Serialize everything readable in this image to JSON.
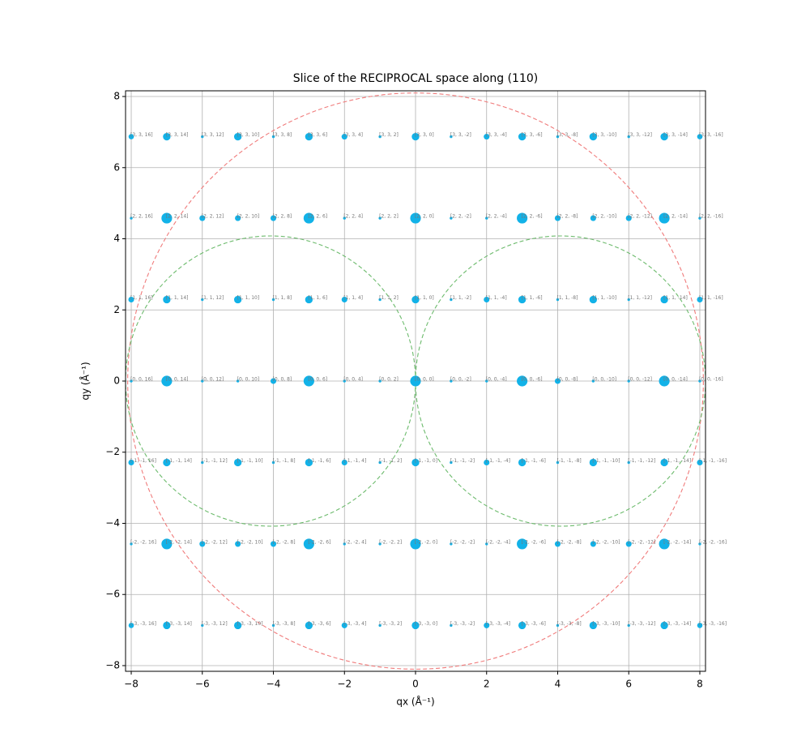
{
  "chart_data": {
    "type": "scatter",
    "title": "Slice of the RECIPROCAL space along (110)",
    "x_label": "qx (Å⁻¹)",
    "y_label": "qy (Å⁻¹)",
    "xlim": [
      -8.16,
      8.16
    ],
    "ylim": [
      -8.16,
      8.16
    ],
    "xticks": [
      {
        "value": -8,
        "label": "−8"
      },
      {
        "value": -6,
        "label": "−6"
      },
      {
        "value": -4,
        "label": "−4"
      },
      {
        "value": -2,
        "label": "−2"
      },
      0,
      2,
      4,
      6,
      8
    ],
    "yticks": [
      {
        "value": -8,
        "label": "−8"
      },
      {
        "value": -6,
        "label": "−6"
      },
      {
        "value": -4,
        "label": "−4"
      },
      {
        "value": -2,
        "label": "−2"
      },
      0,
      2,
      4,
      6,
      8
    ],
    "grid": true,
    "color": "#12b2e8",
    "x": [
      -8,
      -7,
      -6,
      -5,
      -4,
      -3,
      -2,
      -1,
      0,
      1,
      2,
      3,
      4,
      5,
      6,
      7,
      8
    ],
    "rows": [
      {
        "y": 6.87,
        "sizes": [
          30,
          60,
          8,
          60,
          8,
          60,
          35,
          8,
          60,
          8,
          35,
          60,
          8,
          60,
          8,
          60,
          30
        ],
        "labels": [
          "[3, 3, 16]",
          "[3, 3, 14]",
          "[3, 3, 12]",
          "[3, 3, 10]",
          "[3, 3, 8]",
          "[3, 3, 6]",
          "[3, 3, 4]",
          "[3, 3, 2]",
          "[3, 3, 0]",
          "[3, 3, -2]",
          "[3, 3, -4]",
          "[3, 3, -6]",
          "[3, 3, -8]",
          "[3, 3, -10]",
          "[3, 3, -12]",
          "[3, 3, -14]",
          "[3, 3, -16]"
        ]
      },
      {
        "y": 4.58,
        "sizes": [
          8,
          120,
          35,
          35,
          35,
          120,
          8,
          8,
          120,
          8,
          8,
          120,
          35,
          35,
          35,
          120,
          8
        ],
        "labels": [
          "[2, 2, 16]",
          "[2, 2, 14]",
          "[2, 2, 12]",
          "[2, 2, 10]",
          "[2, 2, 8]",
          "[2, 2, 6]",
          "[2, 2, 4]",
          "[2, 2, 2]",
          "[2, 2, 0]",
          "[2, 2, -2]",
          "[2, 2, -4]",
          "[2, 2, -6]",
          "[2, 2, -8]",
          "[2, 2, -10]",
          "[2, 2, -12]",
          "[2, 2, -14]",
          "[2, 2, -16]"
        ]
      },
      {
        "y": 2.29,
        "sizes": [
          35,
          60,
          8,
          60,
          8,
          60,
          35,
          8,
          60,
          8,
          35,
          60,
          8,
          60,
          8,
          60,
          35
        ],
        "labels": [
          "[1, 1, 16]",
          "[1, 1, 14]",
          "[1, 1, 12]",
          "[1, 1, 10]",
          "[1, 1, 8]",
          "[1, 1, 6]",
          "[1, 1, 4]",
          "[1, 1, 2]",
          "[1, 1, 0]",
          "[1, 1, -2]",
          "[1, 1, -4]",
          "[1, 1, -6]",
          "[1, 1, -8]",
          "[1, 1, -10]",
          "[1, 1, -12]",
          "[1, 1, -14]",
          "[1, 1, -16]"
        ]
      },
      {
        "y": 0,
        "sizes": [
          8,
          120,
          8,
          8,
          35,
          120,
          8,
          8,
          120,
          8,
          8,
          120,
          35,
          8,
          8,
          120,
          8
        ],
        "labels": [
          "[0, 0, 16]",
          "[0, 0, 14]",
          "[0, 0, 12]",
          "[0, 0, 10]",
          "[0, 0, 8]",
          "[0, 0, 6]",
          "[0, 0, 4]",
          "[0, 0, 2]",
          "[0, 0, 0]",
          "[0, 0, -2]",
          "[0, 0, -4]",
          "[0, 0, -6]",
          "[0, 0, -8]",
          "[0, 0, -10]",
          "[0, 0, -12]",
          "[0, 0, -14]",
          "[0, 0, -16]"
        ]
      },
      {
        "y": -2.29,
        "sizes": [
          35,
          60,
          8,
          60,
          8,
          60,
          35,
          8,
          60,
          8,
          35,
          60,
          8,
          60,
          8,
          60,
          35
        ],
        "labels": [
          "[-1, -1, 16]",
          "[-1, -1, 14]",
          "[-1, -1, 12]",
          "[-1, -1, 10]",
          "[-1, -1, 8]",
          "[-1, -1, 6]",
          "[-1, -1, 4]",
          "[-1, -1, 2]",
          "[-1, -1, 0]",
          "[-1, -1, -2]",
          "[-1, -1, -4]",
          "[-1, -1, -6]",
          "[-1, -1, -8]",
          "[-1, -1, -10]",
          "[-1, -1, -12]",
          "[-1, -1, -14]",
          "[-1, -1, -16]"
        ]
      },
      {
        "y": -4.58,
        "sizes": [
          8,
          120,
          35,
          35,
          35,
          120,
          8,
          8,
          120,
          8,
          8,
          120,
          35,
          35,
          35,
          120,
          8
        ],
        "labels": [
          "[-2, -2, 16]",
          "[-2, -2, 14]",
          "[-2, -2, 12]",
          "[-2, -2, 10]",
          "[-2, -2, 8]",
          "[-2, -2, 6]",
          "[-2, -2, 4]",
          "[-2, -2, 2]",
          "[-2, -2, 0]",
          "[-2, -2, -2]",
          "[-2, -2, -4]",
          "[-2, -2, -6]",
          "[-2, -2, -8]",
          "[-2, -2, -10]",
          "[-2, -2, -12]",
          "[-2, -2, -14]",
          "[-2, -2, -16]"
        ]
      },
      {
        "y": -6.87,
        "sizes": [
          30,
          60,
          8,
          60,
          8,
          60,
          35,
          8,
          60,
          8,
          35,
          60,
          8,
          60,
          8,
          60,
          30
        ],
        "labels": [
          "[-3, -3, 16]",
          "[-3, -3, 14]",
          "[-3, -3, 12]",
          "[-3, -3, 10]",
          "[-3, -3, 8]",
          "[-3, -3, 6]",
          "[-3, -3, 4]",
          "[-3, -3, 2]",
          "[-3, -3, 0]",
          "[-3, -3, -2]",
          "[-3, -3, -4]",
          "[-3, -3, -6]",
          "[-3, -3, -8]",
          "[-3, -3, -10]",
          "[-3, -3, -12]",
          "[-3, -3, -14]",
          "[-3, -3, -16]"
        ]
      }
    ],
    "circles": [
      {
        "cx": 0,
        "cy": 0,
        "r": 8.1,
        "color": "#f07b7b"
      },
      {
        "cx": -4.08,
        "cy": 0,
        "r": 4.08,
        "color": "#6dbb6d"
      },
      {
        "cx": 4.08,
        "cy": 0,
        "r": 4.08,
        "color": "#6dbb6d"
      }
    ]
  }
}
